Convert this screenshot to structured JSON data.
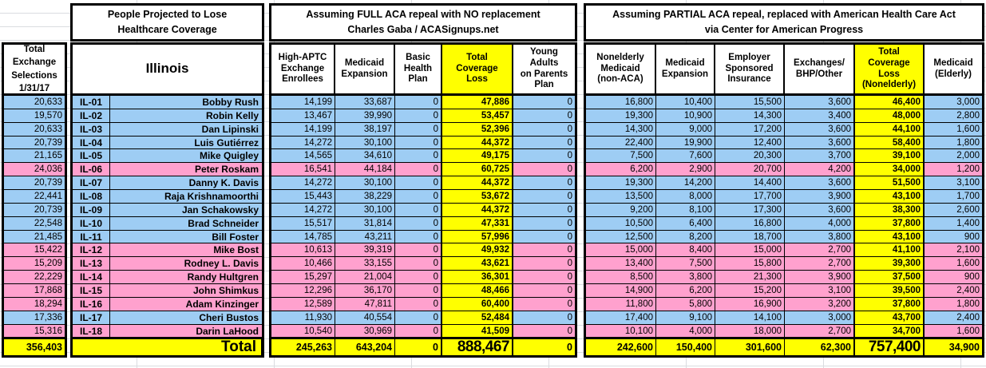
{
  "left_column": {
    "header": "Total\nExchange\nSelections\n1/31/17",
    "total": "356,403"
  },
  "district_section": {
    "title": "People Projected to Lose\nHealthcare Coverage",
    "state": "Illinois",
    "total_label": "Total"
  },
  "full_repeal_section": {
    "title_line1": "Assuming FULL ACA repeal with NO replacement",
    "title_line2": "Charles Gaba / ACASignups.net",
    "columns": [
      "High-APTC\nExchange\nEnrollees",
      "Medicaid\nExpansion",
      "Basic\nHealth\nPlan",
      "Total\nCoverage\nLoss",
      "Young\nAdults\non Parents\nPlan"
    ],
    "totals": [
      "245,263",
      "643,204",
      "0",
      "888,467",
      "0"
    ]
  },
  "partial_repeal_section": {
    "title_line1": "Assuming PARTIAL ACA repeal, replaced with American Health Care Act",
    "title_line2": "via Center for American Progress",
    "columns": [
      "Nonelderly\nMedicaid\n(non-ACA)",
      "Medicaid\nExpansion",
      "Employer\nSponsored\nInsurance",
      "Exchanges/\nBHP/Other",
      "Total\nCoverage\nLoss\n(Nonelderly)",
      "Medicaid\n(Elderly)"
    ],
    "totals": [
      "242,600",
      "150,400",
      "301,600",
      "62,300",
      "757,400",
      "34,900"
    ]
  },
  "colors": {
    "democrat_row": "#9ECDF4",
    "republican_row": "#FFA1CE",
    "highlight_yellow": "#FFFF00"
  },
  "rows": [
    {
      "exchange_selections": "20,633",
      "code": "IL-01",
      "name": "Bobby Rush",
      "party": "D",
      "full": [
        "14,199",
        "33,687",
        "0",
        "47,886",
        "0"
      ],
      "partial": [
        "16,800",
        "10,400",
        "15,500",
        "3,600",
        "46,400",
        "3,000"
      ]
    },
    {
      "exchange_selections": "19,570",
      "code": "IL-02",
      "name": "Robin Kelly",
      "party": "D",
      "full": [
        "13,467",
        "39,990",
        "0",
        "53,457",
        "0"
      ],
      "partial": [
        "19,300",
        "10,900",
        "14,300",
        "3,400",
        "48,000",
        "2,800"
      ]
    },
    {
      "exchange_selections": "20,633",
      "code": "IL-03",
      "name": "Dan Lipinski",
      "party": "D",
      "full": [
        "14,199",
        "38,197",
        "0",
        "52,396",
        "0"
      ],
      "partial": [
        "14,300",
        "9,000",
        "17,200",
        "3,600",
        "44,100",
        "1,600"
      ]
    },
    {
      "exchange_selections": "20,739",
      "code": "IL-04",
      "name": "Luis Gutiérrez",
      "party": "D",
      "full": [
        "14,272",
        "30,100",
        "0",
        "44,372",
        "0"
      ],
      "partial": [
        "22,400",
        "19,900",
        "12,400",
        "3,600",
        "58,400",
        "1,800"
      ]
    },
    {
      "exchange_selections": "21,165",
      "code": "IL-05",
      "name": "Mike Quigley",
      "party": "D",
      "full": [
        "14,565",
        "34,610",
        "0",
        "49,175",
        "0"
      ],
      "partial": [
        "7,500",
        "7,600",
        "20,300",
        "3,700",
        "39,100",
        "2,000"
      ]
    },
    {
      "exchange_selections": "24,036",
      "code": "IL-06",
      "name": "Peter Roskam",
      "party": "R",
      "full": [
        "16,541",
        "44,184",
        "0",
        "60,725",
        "0"
      ],
      "partial": [
        "6,200",
        "2,900",
        "20,700",
        "4,200",
        "34,000",
        "1,200"
      ]
    },
    {
      "exchange_selections": "20,739",
      "code": "IL-07",
      "name": "Danny K. Davis",
      "party": "D",
      "full": [
        "14,272",
        "30,100",
        "0",
        "44,372",
        "0"
      ],
      "partial": [
        "19,300",
        "14,200",
        "14,400",
        "3,600",
        "51,500",
        "3,100"
      ]
    },
    {
      "exchange_selections": "22,441",
      "code": "IL-08",
      "name": "Raja Krishnamoorthi",
      "party": "D",
      "full": [
        "15,443",
        "38,229",
        "0",
        "53,672",
        "0"
      ],
      "partial": [
        "13,500",
        "8,000",
        "17,700",
        "3,900",
        "43,100",
        "1,700"
      ]
    },
    {
      "exchange_selections": "20,739",
      "code": "IL-09",
      "name": "Jan Schakowsky",
      "party": "D",
      "full": [
        "14,272",
        "30,100",
        "0",
        "44,372",
        "0"
      ],
      "partial": [
        "9,200",
        "8,100",
        "17,300",
        "3,600",
        "38,300",
        "2,600"
      ]
    },
    {
      "exchange_selections": "22,548",
      "code": "IL-10",
      "name": "Brad Schneider",
      "party": "D",
      "full": [
        "15,517",
        "31,814",
        "0",
        "47,331",
        "0"
      ],
      "partial": [
        "10,500",
        "6,400",
        "16,800",
        "4,000",
        "37,800",
        "1,400"
      ]
    },
    {
      "exchange_selections": "21,485",
      "code": "IL-11",
      "name": "Bill Foster",
      "party": "D",
      "full": [
        "14,785",
        "43,211",
        "0",
        "57,996",
        "0"
      ],
      "partial": [
        "12,500",
        "8,200",
        "18,700",
        "3,800",
        "43,100",
        "900"
      ]
    },
    {
      "exchange_selections": "15,422",
      "code": "IL-12",
      "name": "Mike Bost",
      "party": "R",
      "full": [
        "10,613",
        "39,319",
        "0",
        "49,932",
        "0"
      ],
      "partial": [
        "15,000",
        "8,400",
        "15,000",
        "2,700",
        "41,100",
        "2,100"
      ]
    },
    {
      "exchange_selections": "15,209",
      "code": "IL-13",
      "name": "Rodney L. Davis",
      "party": "R",
      "full": [
        "10,466",
        "33,155",
        "0",
        "43,621",
        "0"
      ],
      "partial": [
        "13,400",
        "7,500",
        "15,800",
        "2,700",
        "39,300",
        "1,600"
      ]
    },
    {
      "exchange_selections": "22,229",
      "code": "IL-14",
      "name": "Randy Hultgren",
      "party": "R",
      "full": [
        "15,297",
        "21,004",
        "0",
        "36,301",
        "0"
      ],
      "partial": [
        "8,500",
        "3,800",
        "21,300",
        "3,900",
        "37,500",
        "900"
      ]
    },
    {
      "exchange_selections": "17,868",
      "code": "IL-15",
      "name": "John Shimkus",
      "party": "R",
      "full": [
        "12,296",
        "36,170",
        "0",
        "48,466",
        "0"
      ],
      "partial": [
        "14,900",
        "6,200",
        "15,200",
        "3,100",
        "39,500",
        "2,400"
      ]
    },
    {
      "exchange_selections": "18,294",
      "code": "IL-16",
      "name": "Adam Kinzinger",
      "party": "R",
      "full": [
        "12,589",
        "47,811",
        "0",
        "60,400",
        "0"
      ],
      "partial": [
        "11,800",
        "5,800",
        "16,900",
        "3,200",
        "37,800",
        "1,800"
      ]
    },
    {
      "exchange_selections": "17,336",
      "code": "IL-17",
      "name": "Cheri Bustos",
      "party": "D",
      "full": [
        "11,930",
        "40,554",
        "0",
        "52,484",
        "0"
      ],
      "partial": [
        "17,400",
        "9,100",
        "14,100",
        "3,000",
        "43,700",
        "2,400"
      ]
    },
    {
      "exchange_selections": "15,316",
      "code": "IL-18",
      "name": "Darin LaHood",
      "party": "R",
      "full": [
        "10,540",
        "30,969",
        "0",
        "41,509",
        "0"
      ],
      "partial": [
        "10,100",
        "4,000",
        "18,000",
        "2,700",
        "34,700",
        "1,600"
      ]
    }
  ]
}
